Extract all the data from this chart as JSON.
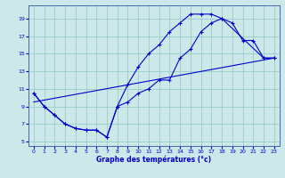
{
  "xlabel": "Graphe des températures (°c)",
  "bg_color": "#cce8e8",
  "grid_color": "#99cccc",
  "line_color": "#0000cc",
  "xlim": [
    -0.5,
    23.5
  ],
  "ylim": [
    4.5,
    20.5
  ],
  "yticks": [
    5,
    7,
    9,
    11,
    13,
    15,
    17,
    19
  ],
  "xticks": [
    0,
    1,
    2,
    3,
    4,
    5,
    6,
    7,
    8,
    9,
    10,
    11,
    12,
    13,
    14,
    15,
    16,
    17,
    18,
    19,
    20,
    21,
    22,
    23
  ],
  "line1_x": [
    0,
    1,
    2,
    3,
    4,
    5,
    6,
    7,
    8,
    9,
    10,
    11,
    12,
    13,
    14,
    15,
    16,
    17,
    18,
    19,
    20,
    21,
    22,
    23
  ],
  "line1_y": [
    10.5,
    9.0,
    8.0,
    7.0,
    6.5,
    6.3,
    6.3,
    5.5,
    9.0,
    9.5,
    10.5,
    11.0,
    12.0,
    12.0,
    14.5,
    15.5,
    17.5,
    18.5,
    19.0,
    18.5,
    16.5,
    16.5,
    14.5,
    14.5
  ],
  "line2_x": [
    0,
    1,
    2,
    3,
    4,
    5,
    6,
    7,
    8,
    9,
    10,
    11,
    12,
    13,
    14,
    15,
    16,
    17,
    18,
    22,
    23
  ],
  "line2_y": [
    10.5,
    9.0,
    8.0,
    7.0,
    6.5,
    6.3,
    6.3,
    5.5,
    9.0,
    11.5,
    13.5,
    15.0,
    16.0,
    17.5,
    18.5,
    19.5,
    19.5,
    19.5,
    19.0,
    14.5,
    14.5
  ],
  "line3_x": [
    0,
    23
  ],
  "line3_y": [
    9.5,
    14.5
  ]
}
